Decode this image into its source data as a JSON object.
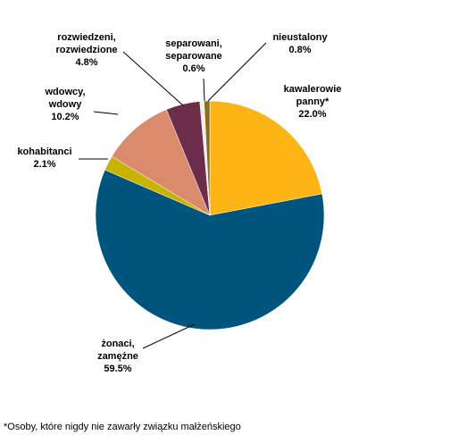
{
  "chart_data": {
    "type": "pie",
    "categories": [
      "kawalerowie\npanny*",
      "żonaci,\nzamężne",
      "kohabitanci",
      "wdowcy,\nwdowy",
      "rozwiedzeni,\nrozwiedzione",
      "separowani,\nseparowane",
      "nieustalony"
    ],
    "values": [
      22.0,
      59.5,
      2.1,
      10.2,
      4.8,
      0.6,
      0.8
    ],
    "value_labels": [
      "22.0%",
      "59.5%",
      "2.1%",
      "10.2%",
      "4.8%",
      "0.6%",
      "0.8%"
    ],
    "colors": [
      "#fdb515",
      "#00557f",
      "#c8b400",
      "#d98b6c",
      "#6b2d4a",
      "#f2efe6",
      "#8c6d1f"
    ],
    "footnote": "*Osoby, które nigdy nie zawarły związku małżeńskiego"
  }
}
